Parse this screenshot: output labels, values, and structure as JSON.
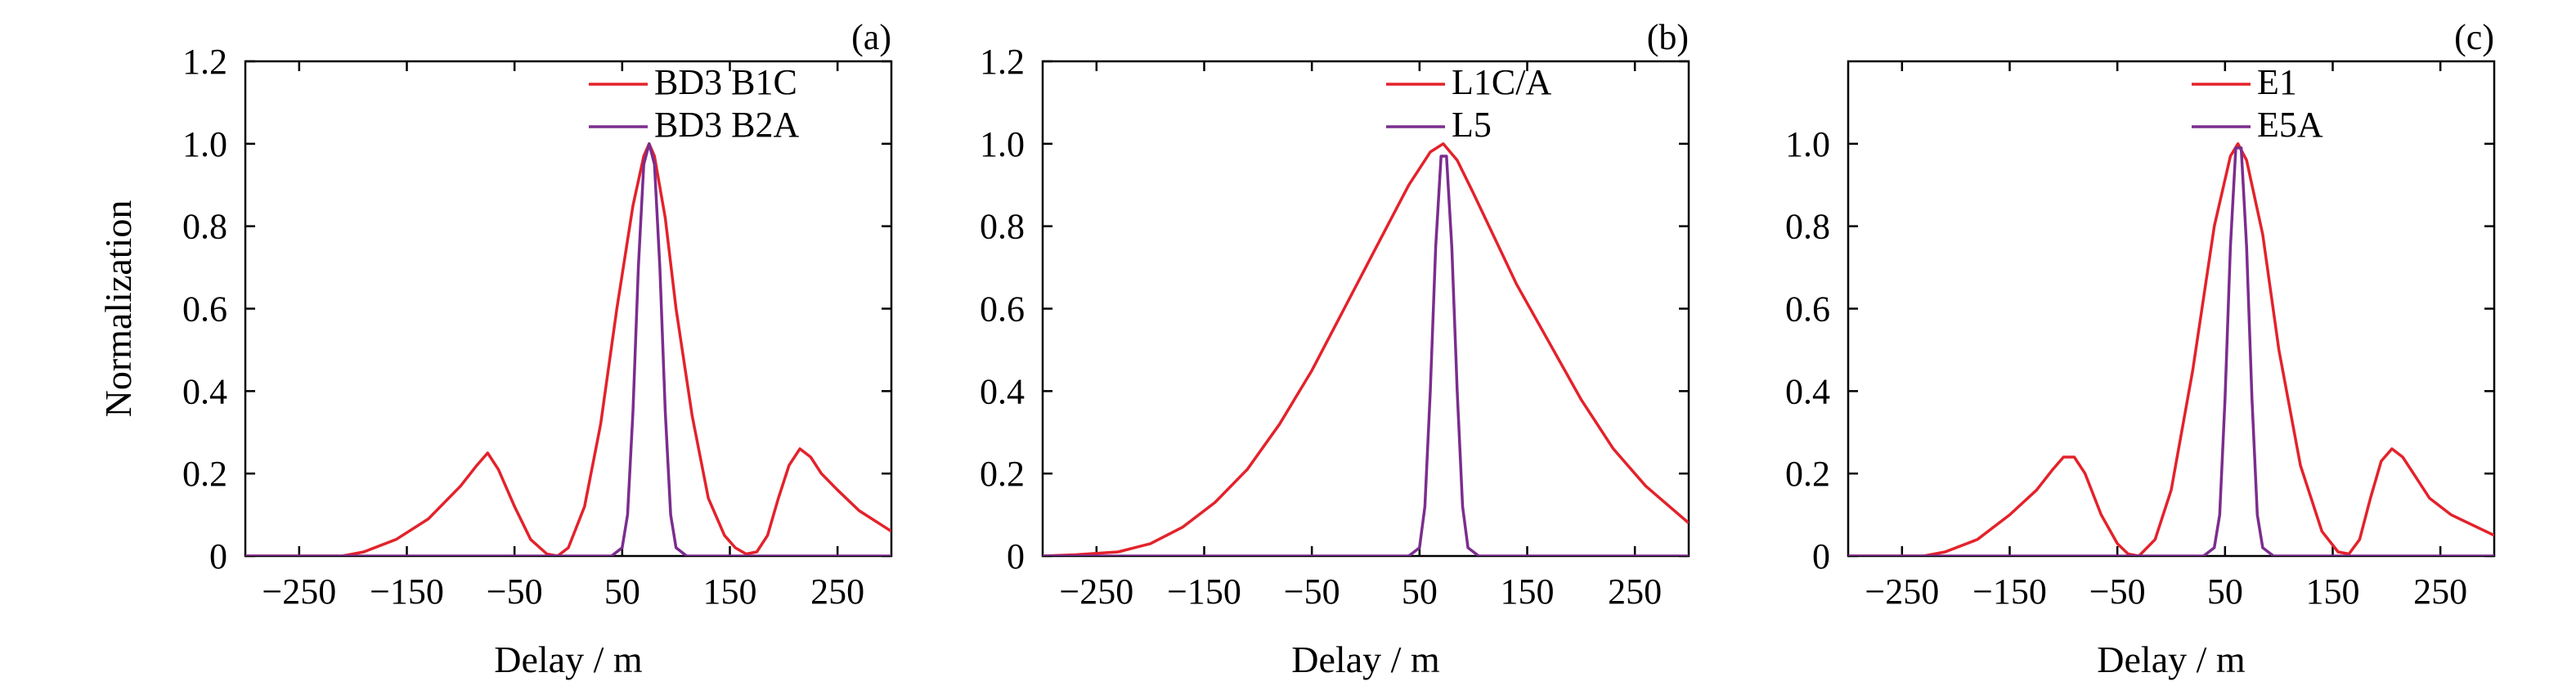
{
  "chart_data": [
    {
      "type": "line",
      "panel_label": "(a)",
      "xlabel": "Delay / m",
      "ylabel": "Normalization",
      "xlim": [
        -300,
        300
      ],
      "ylim": [
        0,
        1.2
      ],
      "xticks": [
        -250,
        -150,
        -50,
        50,
        150,
        250
      ],
      "xtick_labels": [
        "−250",
        "−150",
        "−50",
        "50",
        "150",
        "250"
      ],
      "yticks": [
        0,
        0.2,
        0.4,
        0.6,
        0.8,
        1.0,
        1.2
      ],
      "ytick_labels": [
        "0",
        "0.2",
        "0.4",
        "0.6",
        "0.8",
        "1.0",
        "1.2"
      ],
      "grid": false,
      "legend_position": "top-right",
      "series": [
        {
          "name": "BD3 B1C",
          "color": "#e3222b",
          "x": [
            -300,
            -210,
            -190,
            -160,
            -130,
            -100,
            -85,
            -75,
            -65,
            -50,
            -35,
            -20,
            -10,
            0,
            15,
            30,
            45,
            60,
            70,
            75,
            80,
            90,
            100,
            115,
            130,
            145,
            155,
            165,
            175,
            185,
            195,
            205,
            215,
            225,
            235,
            250,
            270,
            300
          ],
          "y": [
            0,
            0,
            0.01,
            0.04,
            0.09,
            0.17,
            0.22,
            0.25,
            0.21,
            0.12,
            0.04,
            0.005,
            0,
            0.02,
            0.12,
            0.32,
            0.6,
            0.85,
            0.97,
            1.0,
            0.97,
            0.82,
            0.6,
            0.34,
            0.14,
            0.05,
            0.02,
            0.005,
            0.01,
            0.05,
            0.14,
            0.22,
            0.26,
            0.24,
            0.2,
            0.16,
            0.11,
            0.06
          ]
        },
        {
          "name": "BD3 B2A",
          "color": "#7b2d8e",
          "x": [
            -300,
            40,
            50,
            55,
            60,
            65,
            70,
            75,
            80,
            85,
            90,
            95,
            100,
            110,
            300
          ],
          "y": [
            0,
            0,
            0.02,
            0.1,
            0.35,
            0.7,
            0.95,
            1.0,
            0.95,
            0.7,
            0.35,
            0.1,
            0.02,
            0,
            0
          ]
        }
      ]
    },
    {
      "type": "line",
      "panel_label": "(b)",
      "xlabel": "Delay / m",
      "ylabel": "",
      "xlim": [
        -300,
        300
      ],
      "ylim": [
        0,
        1.2
      ],
      "xticks": [
        -250,
        -150,
        -50,
        50,
        150,
        250
      ],
      "xtick_labels": [
        "−250",
        "−150",
        "−50",
        "50",
        "150",
        "250"
      ],
      "yticks": [
        0,
        0.2,
        0.4,
        0.6,
        0.8,
        1.0,
        1.2
      ],
      "ytick_labels": [
        "0",
        "0.2",
        "0.4",
        "0.6",
        "0.8",
        "1.0",
        "1.2"
      ],
      "grid": false,
      "legend_position": "top-right",
      "series": [
        {
          "name": "L1C/A",
          "color": "#e3222b",
          "x": [
            -300,
            -270,
            -230,
            -200,
            -170,
            -140,
            -110,
            -80,
            -50,
            -20,
            0,
            20,
            40,
            60,
            72,
            85,
            100,
            120,
            140,
            170,
            200,
            230,
            260,
            300
          ],
          "y": [
            0,
            0.003,
            0.01,
            0.03,
            0.07,
            0.13,
            0.21,
            0.32,
            0.45,
            0.6,
            0.7,
            0.8,
            0.9,
            0.98,
            1.0,
            0.96,
            0.88,
            0.77,
            0.66,
            0.52,
            0.38,
            0.26,
            0.17,
            0.08
          ]
        },
        {
          "name": "L5",
          "color": "#7b2d8e",
          "x": [
            -300,
            40,
            50,
            55,
            60,
            65,
            70,
            75,
            80,
            85,
            90,
            95,
            105,
            300
          ],
          "y": [
            0,
            0,
            0.02,
            0.12,
            0.4,
            0.75,
            0.97,
            0.97,
            0.75,
            0.4,
            0.12,
            0.02,
            0,
            0
          ]
        }
      ]
    },
    {
      "type": "line",
      "panel_label": "(c)",
      "xlabel": "Delay / m",
      "ylabel": "",
      "xlim": [
        -300,
        300
      ],
      "ylim": [
        0,
        1.2
      ],
      "xticks": [
        -250,
        -150,
        -50,
        50,
        150,
        250
      ],
      "xtick_labels": [
        "−250",
        "−150",
        "−50",
        "50",
        "150",
        "250"
      ],
      "yticks": [
        0,
        0.2,
        0.4,
        0.6,
        0.8,
        1.0
      ],
      "ytick_labels": [
        "0",
        "0.2",
        "0.4",
        "0.6",
        "0.8",
        "1.0"
      ],
      "grid": false,
      "legend_position": "top-right",
      "series": [
        {
          "name": "E1",
          "color": "#e3222b",
          "x": [
            -300,
            -230,
            -210,
            -180,
            -150,
            -125,
            -110,
            -100,
            -90,
            -80,
            -65,
            -50,
            -40,
            -30,
            -15,
            0,
            20,
            40,
            55,
            62,
            70,
            85,
            100,
            120,
            140,
            155,
            165,
            175,
            185,
            195,
            205,
            215,
            225,
            240,
            260,
            300
          ],
          "y": [
            0,
            0,
            0.01,
            0.04,
            0.1,
            0.16,
            0.21,
            0.24,
            0.24,
            0.2,
            0.1,
            0.03,
            0.005,
            0,
            0.04,
            0.16,
            0.45,
            0.8,
            0.97,
            1.0,
            0.96,
            0.78,
            0.5,
            0.22,
            0.06,
            0.01,
            0.005,
            0.04,
            0.14,
            0.23,
            0.26,
            0.24,
            0.2,
            0.14,
            0.1,
            0.05
          ]
        },
        {
          "name": "E5A",
          "color": "#7b2d8e",
          "x": [
            -300,
            30,
            40,
            45,
            50,
            55,
            60,
            65,
            70,
            75,
            80,
            85,
            95,
            300
          ],
          "y": [
            0,
            0,
            0.02,
            0.1,
            0.38,
            0.75,
            0.99,
            0.99,
            0.75,
            0.38,
            0.1,
            0.02,
            0,
            0
          ]
        }
      ]
    }
  ]
}
